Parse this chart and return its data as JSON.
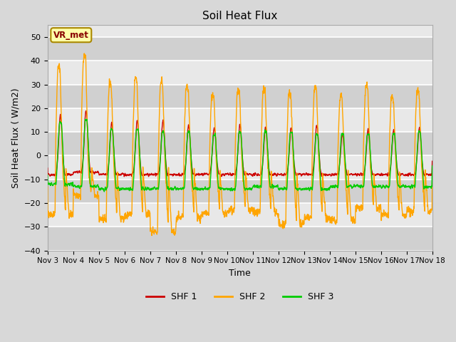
{
  "title": "Soil Heat Flux",
  "xlabel": "Time",
  "ylabel": "Soil Heat Flux ( W/m2)",
  "ylim": [
    -40,
    55
  ],
  "yticks": [
    -40,
    -30,
    -20,
    -10,
    0,
    10,
    20,
    30,
    40,
    50
  ],
  "xtick_labels": [
    "Nov 3",
    "Nov 4",
    "Nov 5",
    "Nov 6",
    "Nov 7",
    "Nov 8",
    "Nov 9",
    "Nov 10",
    "Nov 11",
    "Nov 12",
    "Nov 13",
    "Nov 14",
    "Nov 15",
    "Nov 16",
    "Nov 17",
    "Nov 18"
  ],
  "shf1_color": "#cc0000",
  "shf2_color": "#ffa500",
  "shf3_color": "#00cc00",
  "fig_bg_color": "#d8d8d8",
  "plot_bg_color": "#e8e8e8",
  "band_color": "#d0d0d0",
  "annotation_text": "VR_met",
  "annotation_box_color": "#ffffaa",
  "annotation_border_color": "#aa8800",
  "annotation_text_color": "#880000",
  "legend_labels": [
    "SHF 1",
    "SHF 2",
    "SHF 3"
  ],
  "n_days": 15,
  "pts_per_day": 144
}
